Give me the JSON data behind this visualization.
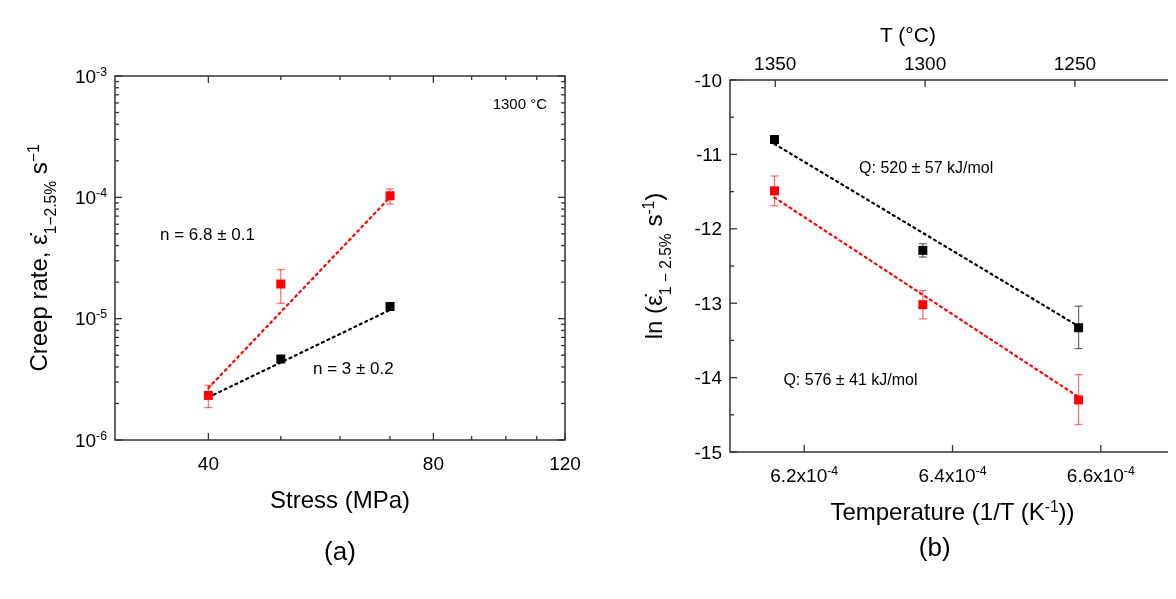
{
  "chart_data": [
    {
      "type": "scatter",
      "xlabel": "Stress (MPa)",
      "ylabel": "Creep rate, ε̇$_{1−2.5%}$ s$^{−1}$",
      "log": "xy",
      "marker": "square",
      "xlim": [
        30,
        120
      ],
      "xticks": [
        40,
        {
          "value": 50,
          "label": null
        },
        {
          "value": 60,
          "label": null
        },
        {
          "value": 70,
          "label": null
        },
        80,
        {
          "value": 90,
          "label": null
        },
        {
          "value": 100,
          "label": null
        },
        {
          "value": 110,
          "label": null
        },
        120
      ],
      "ylim": [
        1e-06,
        0.001
      ],
      "yticks": [
        {
          "value": 1e-06,
          "label": "10$^{-6}$"
        },
        {
          "value": 2e-06,
          "label": null
        },
        {
          "value": 3e-06,
          "label": null
        },
        {
          "value": 4e-06,
          "label": null
        },
        {
          "value": 5e-06,
          "label": null
        },
        {
          "value": 6e-06,
          "label": null
        },
        {
          "value": 7e-06,
          "label": null
        },
        {
          "value": 8e-06,
          "label": null
        },
        {
          "value": 9e-06,
          "label": null
        },
        {
          "value": 1e-05,
          "label": "10$^{-5}$"
        },
        {
          "value": 2e-05,
          "label": null
        },
        {
          "value": 3e-05,
          "label": null
        },
        {
          "value": 4e-05,
          "label": null
        },
        {
          "value": 5e-05,
          "label": null
        },
        {
          "value": 6e-05,
          "label": null
        },
        {
          "value": 7e-05,
          "label": null
        },
        {
          "value": 8e-05,
          "label": null
        },
        {
          "value": 9e-05,
          "label": null
        },
        {
          "value": 0.0001,
          "label": "10$^{-4}$"
        },
        {
          "value": 0.0002,
          "label": null
        },
        {
          "value": 0.0003,
          "label": null
        },
        {
          "value": 0.0004,
          "label": null
        },
        {
          "value": 0.0005,
          "label": null
        },
        {
          "value": 0.0006,
          "label": null
        },
        {
          "value": 0.0007,
          "label": null
        },
        {
          "value": 0.0008,
          "label": null
        },
        {
          "value": 0.0009,
          "label": null
        },
        {
          "value": 0.001,
          "label": "10$^{-3}$"
        }
      ],
      "series": [
        {
          "type": "line",
          "color": "#ff0000",
          "line_style": "dotted",
          "marker": "none",
          "x": [
            40,
            70
          ],
          "values": [
            2.68e-06,
            0.0001
          ]
        },
        {
          "type": "line",
          "color": "#000000",
          "line_style": "dotted",
          "marker": "none",
          "x": [
            40,
            70
          ],
          "values": [
            2.25e-06,
            1.18e-05
          ]
        },
        {
          "color": "#000000",
          "x": [
            50,
            70
          ],
          "values": [
            4.65e-06,
            1.26e-05
          ]
        },
        {
          "color": "#ff0000",
          "x": [
            40,
            50,
            70
          ],
          "values": [
            2.33e-06,
            1.93e-05,
            0.000103
          ],
          "errors": [
            [
              1.85e-06,
              2.82e-06
            ],
            [
              1.34e-05,
              2.54e-05
            ],
            [
              8.8e-05,
              0.000117
            ]
          ]
        }
      ],
      "annotations": [
        "1300 °C",
        "n = 6.8 ± 0.1",
        "n = 3 ± 0.2",
        "(a)"
      ]
    },
    {
      "type": "scatter",
      "xlabel": "Temperature (1/T (K$^{-1}$))",
      "ylabel": "ln (ε̇$_{1 − 2.5%}$ s$^{-1}$)",
      "x2label": "T (°C)",
      "marker": "square",
      "xlim": [
        0.00061,
        0.00067
      ],
      "xticks": [
        {
          "value": 0.00062,
          "label": "6.2x10$^{-4}$"
        },
        {
          "value": 0.00064,
          "label": "6.4x10$^{-4}$"
        },
        {
          "value": 0.00066,
          "label": "6.6x10$^{-4}$"
        }
      ],
      "x2lim": [
        1365.1,
        1216.6
      ],
      "x2ticks": [
        1350,
        1300,
        1250
      ],
      "ylim": [
        -15,
        -10
      ],
      "yticks": [
        -15,
        {
          "value": -14.5,
          "label": null
        },
        -14,
        {
          "value": -13.5,
          "label": null
        },
        -13,
        {
          "value": -12.5,
          "label": null
        },
        -12,
        {
          "value": -11.5,
          "label": null
        },
        -11,
        {
          "value": -10.5,
          "label": null
        },
        -10
      ],
      "series": [
        {
          "type": "line",
          "color": "#000000",
          "line_style": "dotted",
          "marker": "none",
          "x": [
            0.000616,
            0.000657
          ],
          "values": [
            -10.86,
            -13.31
          ]
        },
        {
          "type": "line",
          "color": "#ff0000",
          "line_style": "dotted",
          "marker": "none",
          "x": [
            0.000616,
            0.000657
          ],
          "values": [
            -11.58,
            -14.26
          ]
        },
        {
          "color": "#000000",
          "x": [
            0.000616,
            0.000636,
            0.000657
          ],
          "values": [
            -10.8,
            -12.29,
            -13.33
          ],
          "errors": [
            null,
            [
              -12.38,
              -12.2
            ],
            [
              -13.61,
              -13.04
            ]
          ]
        },
        {
          "color": "#ff0000",
          "x": [
            0.000616,
            0.000636,
            0.000657
          ],
          "values": [
            -11.49,
            -13.02,
            -14.3
          ],
          "errors": [
            [
              -11.69,
              -11.29
            ],
            [
              -13.21,
              -12.83
            ],
            [
              -14.63,
              -13.96
            ]
          ]
        }
      ],
      "annotations": [
        "Q: 520 ± 57 kJ/mol",
        "Q: 576 ± 41 kJ/mol",
        "(b)"
      ]
    }
  ]
}
